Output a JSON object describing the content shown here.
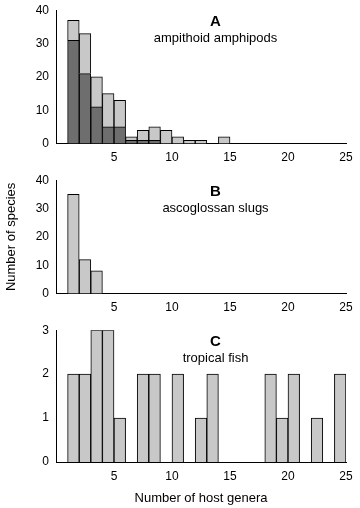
{
  "chart_data": [
    {
      "type": "histogram",
      "title": "A",
      "subtitle": "ampithoid amphipods",
      "bins": [
        1,
        2,
        3,
        4,
        5,
        6,
        7,
        8,
        9,
        10,
        11,
        12,
        13,
        14,
        15
      ],
      "series": [
        {
          "color": "#6e6e6e",
          "values": [
            31,
            21,
            11,
            5,
            5,
            1,
            1,
            1,
            0,
            0,
            0,
            0,
            0,
            0
          ]
        },
        {
          "color": "#c8c8c8",
          "values": [
            6,
            12,
            9,
            10,
            8,
            1,
            3,
            4,
            4,
            2,
            1,
            1,
            0,
            2
          ]
        }
      ],
      "stacked": true,
      "xlim": [
        0,
        25
      ],
      "xticks": [
        5,
        10,
        15,
        20,
        25
      ],
      "ylim": [
        0,
        40
      ],
      "yticks": [
        0,
        10,
        20,
        30,
        40
      ],
      "grid": false
    },
    {
      "type": "histogram",
      "title": "B",
      "subtitle": "ascoglossan slugs",
      "ylabel": "Number of species",
      "bins": [
        1,
        2,
        3,
        4
      ],
      "values": [
        35,
        12,
        8
      ],
      "color": "#c8c8c8",
      "xlim": [
        0,
        25
      ],
      "xticks": [
        5,
        10,
        15,
        20,
        25
      ],
      "ylim": [
        0,
        40
      ],
      "yticks": [
        0,
        10,
        20,
        30,
        40
      ],
      "grid": false
    },
    {
      "type": "histogram",
      "title": "C",
      "subtitle": "tropical fish",
      "xlabel": "Number of host genera",
      "bins": [
        1,
        2,
        3,
        4,
        5,
        6,
        7,
        8,
        9,
        10,
        11,
        12,
        13,
        14,
        15,
        16,
        17,
        18,
        19,
        20,
        21,
        22,
        23,
        24,
        25
      ],
      "values": [
        2,
        2,
        3,
        3,
        1,
        0,
        2,
        2,
        0,
        2,
        0,
        1,
        2,
        0,
        0,
        0,
        0,
        2,
        1,
        2,
        0,
        1,
        0,
        2
      ],
      "color": "#c8c8c8",
      "xlim": [
        0,
        25
      ],
      "xticks": [
        5,
        10,
        15,
        20,
        25
      ],
      "ylim": [
        0,
        3
      ],
      "yticks": [
        0,
        1,
        2,
        3
      ],
      "grid": false
    }
  ]
}
